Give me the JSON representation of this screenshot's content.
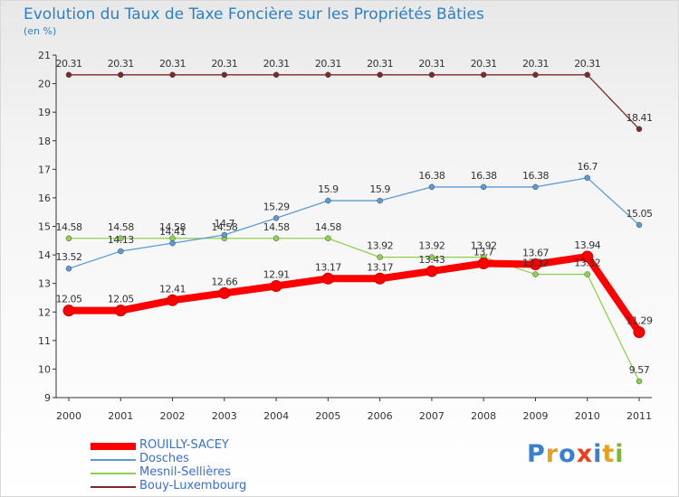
{
  "title": "Evolution du Taux de Taxe Foncière sur les Propriétés Bâties",
  "unit_label": "(en %)",
  "logo_text": "Proxiti",
  "chart_data": {
    "type": "line",
    "x": [
      "2000",
      "2001",
      "2002",
      "2003",
      "2004",
      "2005",
      "2006",
      "2007",
      "2008",
      "2009",
      "2010",
      "2011"
    ],
    "ylim": [
      9,
      21
    ],
    "yticks": [
      "9",
      "10",
      "11",
      "12",
      "13",
      "14",
      "15",
      "16",
      "17",
      "18",
      "19",
      "20",
      "21"
    ],
    "grid": false,
    "legend_position": "bottom-left",
    "series": [
      {
        "name": "ROUILLY-SACEY",
        "color": "#ff0000",
        "values": [
          12.05,
          12.05,
          12.41,
          12.66,
          12.91,
          13.17,
          13.17,
          13.43,
          13.7,
          13.67,
          13.94,
          11.29
        ],
        "labels": [
          "12.05",
          "12.05",
          "12.41",
          "12.66",
          "12.91",
          "13.17",
          "13.17",
          "13.43",
          "13.7",
          "13.67",
          "13.94",
          "11.29"
        ]
      },
      {
        "name": "Dosches",
        "color": "#5b9bd5",
        "values": [
          13.52,
          14.13,
          14.41,
          14.7,
          15.29,
          15.9,
          15.9,
          16.38,
          16.38,
          16.38,
          16.7,
          15.05
        ],
        "labels": [
          "13.52",
          "14.13",
          "14.41",
          "14.7",
          "15.29",
          "15.9",
          "15.9",
          "16.38",
          "16.38",
          "16.38",
          "16.7",
          "15.05"
        ]
      },
      {
        "name": "Mesnil-Sellières",
        "color": "#8fd14f",
        "values": [
          14.58,
          14.58,
          14.58,
          14.58,
          14.58,
          14.58,
          13.92,
          13.92,
          13.92,
          13.32,
          13.32,
          9.57
        ],
        "labels": [
          "14.58",
          "14.58",
          "14.58",
          "14.58",
          "14.58",
          "14.58",
          "13.92",
          "13.92",
          "13.92",
          "13.32",
          "13.32",
          "9.57"
        ]
      },
      {
        "name": "Bouy-Luxembourg",
        "color": "#7a2a2a",
        "values": [
          20.31,
          20.31,
          20.31,
          20.31,
          20.31,
          20.31,
          20.31,
          20.31,
          20.31,
          20.31,
          20.31,
          18.41
        ],
        "labels": [
          "20.31",
          "20.31",
          "20.31",
          "20.31",
          "20.31",
          "20.31",
          "20.31",
          "20.31",
          "20.31",
          "20.31",
          "20.31",
          "18.41"
        ]
      }
    ]
  }
}
